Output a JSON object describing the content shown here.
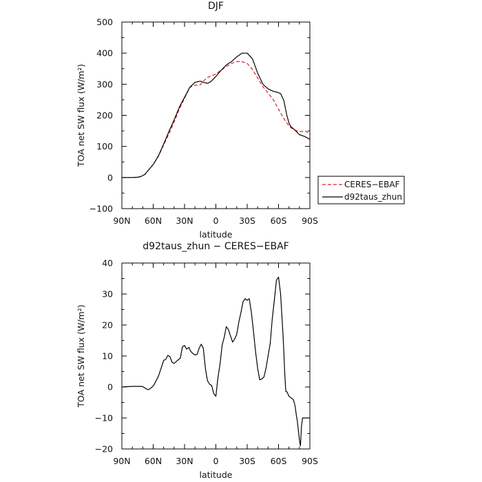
{
  "chart_data": [
    {
      "type": "line",
      "title": "DJF",
      "xlabel": "latitude",
      "ylabel": "TOA net SW flux (W/m²)",
      "xlim": [
        90,
        -90
      ],
      "ylim": [
        -100,
        500
      ],
      "x_ticks": [
        90,
        60,
        30,
        0,
        -30,
        -60,
        -90
      ],
      "x_tick_labels": [
        "90N",
        "60N",
        "30N",
        "0",
        "30S",
        "60S",
        "90S"
      ],
      "y_ticks": [
        -100,
        0,
        100,
        200,
        300,
        400,
        500
      ],
      "y_tick_labels": [
        "−100",
        "0",
        "100",
        "200",
        "300",
        "400",
        "500"
      ],
      "legend": {
        "placement": "outside-right",
        "entries": [
          "CERES−EBAF",
          "d92taus_zhun"
        ]
      },
      "series": [
        {
          "name": "CERES−EBAF",
          "color": "#e31a1c",
          "dash": "dashed",
          "x": [
            90,
            85,
            80,
            75,
            72,
            68,
            65,
            60,
            55,
            50,
            45,
            40,
            35,
            30,
            25,
            20,
            15,
            12,
            8,
            5,
            2,
            0,
            -5,
            -10,
            -15,
            -20,
            -25,
            -30,
            -35,
            -40,
            -45,
            -50,
            -55,
            -60,
            -65,
            -70,
            -72,
            -75,
            -80,
            -83,
            -85,
            -88,
            -90
          ],
          "values": [
            0,
            0,
            0,
            1,
            3,
            10,
            22,
            42,
            68,
            105,
            140,
            178,
            220,
            255,
            290,
            297,
            298,
            310,
            322,
            326,
            330,
            333,
            345,
            357,
            367,
            373,
            373,
            367,
            348,
            320,
            292,
            272,
            250,
            220,
            190,
            166,
            160,
            152,
            148,
            148,
            150,
            145,
            137
          ]
        },
        {
          "name": "d92taus_zhun",
          "color": "#000000",
          "dash": "solid",
          "x": [
            90,
            85,
            80,
            75,
            72,
            68,
            65,
            60,
            55,
            50,
            45,
            40,
            35,
            30,
            25,
            20,
            15,
            12,
            8,
            5,
            2,
            0,
            -5,
            -10,
            -15,
            -20,
            -25,
            -30,
            -35,
            -40,
            -45,
            -50,
            -55,
            -58,
            -62,
            -65,
            -68,
            -70,
            -72,
            -75,
            -80,
            -85,
            -90
          ],
          "values": [
            0,
            0,
            0,
            1,
            3,
            10,
            22,
            42,
            70,
            108,
            148,
            185,
            226,
            258,
            290,
            306,
            310,
            306,
            303,
            308,
            318,
            325,
            345,
            362,
            373,
            388,
            400,
            400,
            382,
            336,
            300,
            285,
            277,
            275,
            270,
            248,
            200,
            175,
            163,
            155,
            138,
            132,
            123
          ]
        }
      ]
    },
    {
      "type": "line",
      "title": "d92taus_zhun − CERES−EBAF",
      "xlabel": "latitude",
      "ylabel": "TOA net SW flux (W/m²)",
      "xlim": [
        90,
        -90
      ],
      "ylim": [
        -20,
        40
      ],
      "x_ticks": [
        90,
        60,
        30,
        0,
        -30,
        -60,
        -90
      ],
      "x_tick_labels": [
        "90N",
        "60N",
        "30N",
        "0",
        "30S",
        "60S",
        "90S"
      ],
      "y_ticks": [
        -20,
        -10,
        0,
        10,
        20,
        30,
        40
      ],
      "y_tick_labels": [
        "−20",
        "−10",
        "0",
        "10",
        "20",
        "30",
        "40"
      ],
      "series": [
        {
          "color": "#000000",
          "dash": "solid",
          "x": [
            90,
            80,
            75,
            72,
            70,
            67,
            65,
            63,
            60,
            58,
            55,
            52,
            50,
            48,
            46,
            44,
            42,
            40,
            38,
            36,
            34,
            32,
            30,
            28,
            26,
            24,
            22,
            20,
            18,
            16,
            14,
            12,
            10,
            9,
            8,
            6,
            4,
            2,
            0,
            -1,
            -2,
            -4,
            -6,
            -8,
            -10,
            -12,
            -14,
            -16,
            -18,
            -20,
            -22,
            -24,
            -26,
            -28,
            -30,
            -32,
            -34,
            -36,
            -38,
            -40,
            -42,
            -44,
            -46,
            -48,
            -50,
            -52,
            -54,
            -56,
            -58,
            -60,
            -62,
            -64,
            -65,
            -66,
            -67,
            -68,
            -70,
            -72,
            -74,
            -75,
            -76,
            -77,
            -78,
            -79,
            -80,
            -81,
            -82,
            -83,
            -84,
            -85,
            -86,
            -87,
            -88,
            -89,
            -90
          ],
          "values": [
            0,
            0.2,
            0.2,
            0.2,
            0.1,
            -0.5,
            -0.9,
            -0.6,
            0.3,
            1.5,
            3.5,
            6.5,
            8.6,
            8.9,
            10.2,
            9.8,
            8.0,
            7.6,
            8.2,
            8.8,
            9.3,
            13.0,
            13.4,
            12.2,
            12.8,
            11.5,
            10.8,
            10.3,
            10.5,
            12.5,
            13.8,
            12.5,
            6.0,
            3.8,
            2.0,
            0.9,
            0.5,
            -2.2,
            -3.0,
            0.0,
            3.0,
            7.5,
            13.5,
            16.0,
            19.5,
            18.5,
            16.5,
            14.5,
            15.5,
            17.0,
            21.0,
            24.0,
            27.5,
            28.5,
            28.0,
            28.5,
            24.0,
            18.0,
            11.5,
            6.0,
            2.3,
            2.6,
            3.2,
            6.0,
            10.0,
            14.0,
            22.0,
            28.0,
            34.5,
            35.5,
            30.0,
            18.5,
            12.0,
            4.0,
            -1.5,
            -1.5,
            -3.0,
            -3.5,
            -4.0,
            -5.0,
            -6.5,
            -9.0,
            -11.0,
            -14.0,
            -17.0,
            -19.0,
            -12.5,
            -10.0,
            -10.0,
            -10.0,
            -10.0,
            -10.0,
            -10.0,
            -10.0,
            -10.0
          ]
        }
      ]
    }
  ]
}
